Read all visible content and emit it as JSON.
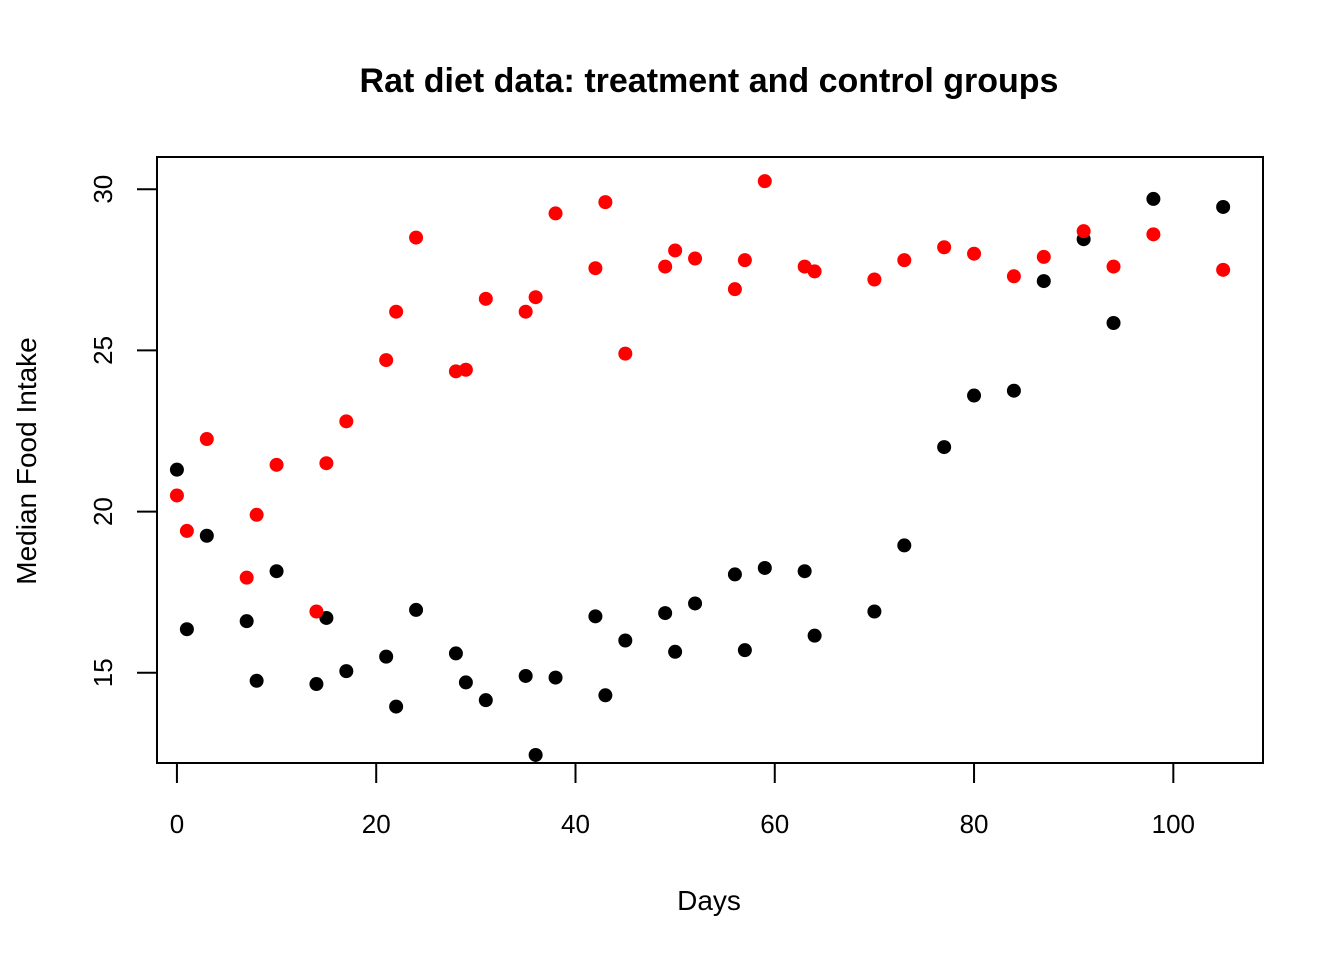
{
  "chart_data": {
    "type": "scatter",
    "title": "Rat diet data: treatment and control groups",
    "xlabel": "Days",
    "ylabel": "Median Food Intake",
    "xlim": [
      -2,
      109
    ],
    "ylim": [
      12.2,
      31
    ],
    "x_ticks": [
      0,
      20,
      40,
      60,
      80,
      100
    ],
    "y_ticks": [
      15,
      20,
      25,
      30
    ],
    "grid": false,
    "legend": "none",
    "series": [
      {
        "color": "#000000",
        "points": [
          [
            0,
            21.3
          ],
          [
            1,
            16.35
          ],
          [
            3,
            19.25
          ],
          [
            7,
            16.6
          ],
          [
            8,
            14.75
          ],
          [
            10,
            18.15
          ],
          [
            14,
            14.65
          ],
          [
            15,
            16.7
          ],
          [
            17,
            15.05
          ],
          [
            21,
            15.5
          ],
          [
            22,
            13.95
          ],
          [
            24,
            16.95
          ],
          [
            28,
            15.6
          ],
          [
            29,
            14.7
          ],
          [
            31,
            14.15
          ],
          [
            35,
            14.9
          ],
          [
            36,
            12.45
          ],
          [
            38,
            14.85
          ],
          [
            42,
            16.75
          ],
          [
            43,
            14.3
          ],
          [
            45,
            16.0
          ],
          [
            49,
            16.85
          ],
          [
            50,
            15.65
          ],
          [
            52,
            17.15
          ],
          [
            56,
            18.05
          ],
          [
            57,
            15.7
          ],
          [
            59,
            18.25
          ],
          [
            63,
            18.15
          ],
          [
            64,
            16.15
          ],
          [
            70,
            16.9
          ],
          [
            73,
            18.95
          ],
          [
            77,
            22.0
          ],
          [
            80,
            23.6
          ],
          [
            84,
            23.75
          ],
          [
            87,
            27.15
          ],
          [
            91,
            28.45
          ],
          [
            94,
            25.85
          ],
          [
            98,
            29.7
          ],
          [
            105,
            29.45
          ]
        ]
      },
      {
        "color": "#ff0000",
        "points": [
          [
            0,
            20.5
          ],
          [
            1,
            19.4
          ],
          [
            3,
            22.25
          ],
          [
            7,
            17.95
          ],
          [
            8,
            19.9
          ],
          [
            10,
            21.45
          ],
          [
            14,
            16.9
          ],
          [
            15,
            21.5
          ],
          [
            17,
            22.8
          ],
          [
            21,
            24.7
          ],
          [
            22,
            26.2
          ],
          [
            24,
            28.5
          ],
          [
            28,
            24.35
          ],
          [
            29,
            24.4
          ],
          [
            31,
            26.6
          ],
          [
            35,
            26.2
          ],
          [
            36,
            26.65
          ],
          [
            38,
            29.25
          ],
          [
            42,
            27.55
          ],
          [
            43,
            29.6
          ],
          [
            45,
            24.9
          ],
          [
            49,
            27.6
          ],
          [
            50,
            28.1
          ],
          [
            52,
            27.85
          ],
          [
            56,
            26.9
          ],
          [
            57,
            27.8
          ],
          [
            59,
            30.25
          ],
          [
            63,
            27.6
          ],
          [
            64,
            27.45
          ],
          [
            70,
            27.2
          ],
          [
            73,
            27.8
          ],
          [
            77,
            28.2
          ],
          [
            80,
            28.0
          ],
          [
            84,
            27.3
          ],
          [
            87,
            27.9
          ],
          [
            91,
            28.7
          ],
          [
            94,
            27.6
          ],
          [
            98,
            28.6
          ],
          [
            105,
            27.5
          ]
        ]
      }
    ]
  }
}
